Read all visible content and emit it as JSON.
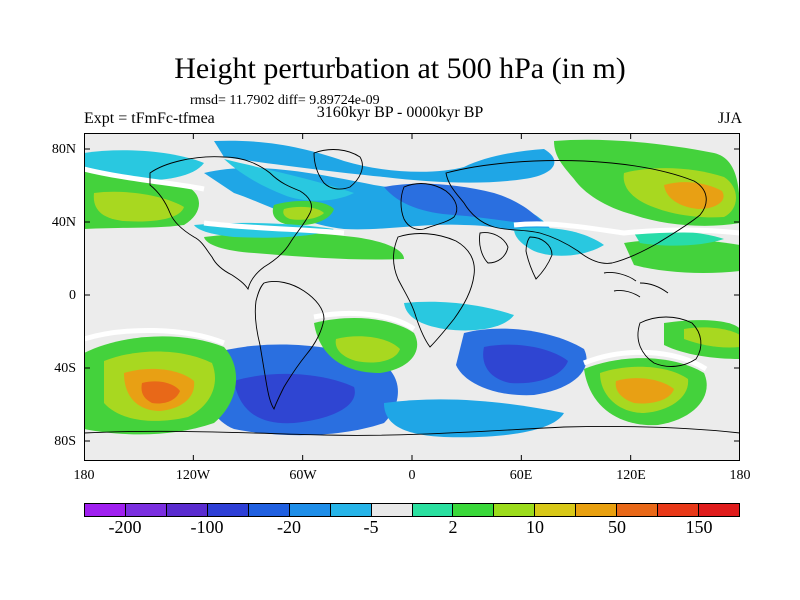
{
  "title": "Height perturbation at 500 hPa (in m)",
  "stats": "rmsd= 11.7902 diff= 9.89724e-09",
  "experiment": "Expt = tFmFc-tfmea",
  "period": "3160kyr BP - 0000kyr BP",
  "season": "JJA",
  "axes": {
    "lat_labels": [
      "80N",
      "40N",
      "0",
      "40S",
      "80S"
    ],
    "lon_labels": [
      "180",
      "120W",
      "60W",
      "0",
      "60E",
      "120E",
      "180"
    ]
  },
  "colorbar": {
    "colors": [
      "#a020f0",
      "#7b2fe0",
      "#5a2ccf",
      "#2e3fd6",
      "#2060e0",
      "#1e8ee8",
      "#26b4e8",
      "#e8e8e8",
      "#2ae0a0",
      "#3ad83a",
      "#9cdc1c",
      "#d8c818",
      "#e8a010",
      "#e86818",
      "#e83818",
      "#e01c1c"
    ],
    "labels": [
      "-200",
      "-100",
      "-20",
      "-5",
      "2",
      "10",
      "50",
      "150"
    ]
  },
  "colors": {
    "neutral": "#ececec",
    "deep_blue": "#2f45d2",
    "mid_blue": "#2a6fe0",
    "light_blue": "#1fa6e6",
    "cyan": "#29c8e0",
    "aqua_green": "#28dca8",
    "green": "#44d23c",
    "yellow_green": "#a8d820",
    "yellow": "#d8c418",
    "orange": "#e8a014",
    "white_gap": "#ffffff"
  }
}
